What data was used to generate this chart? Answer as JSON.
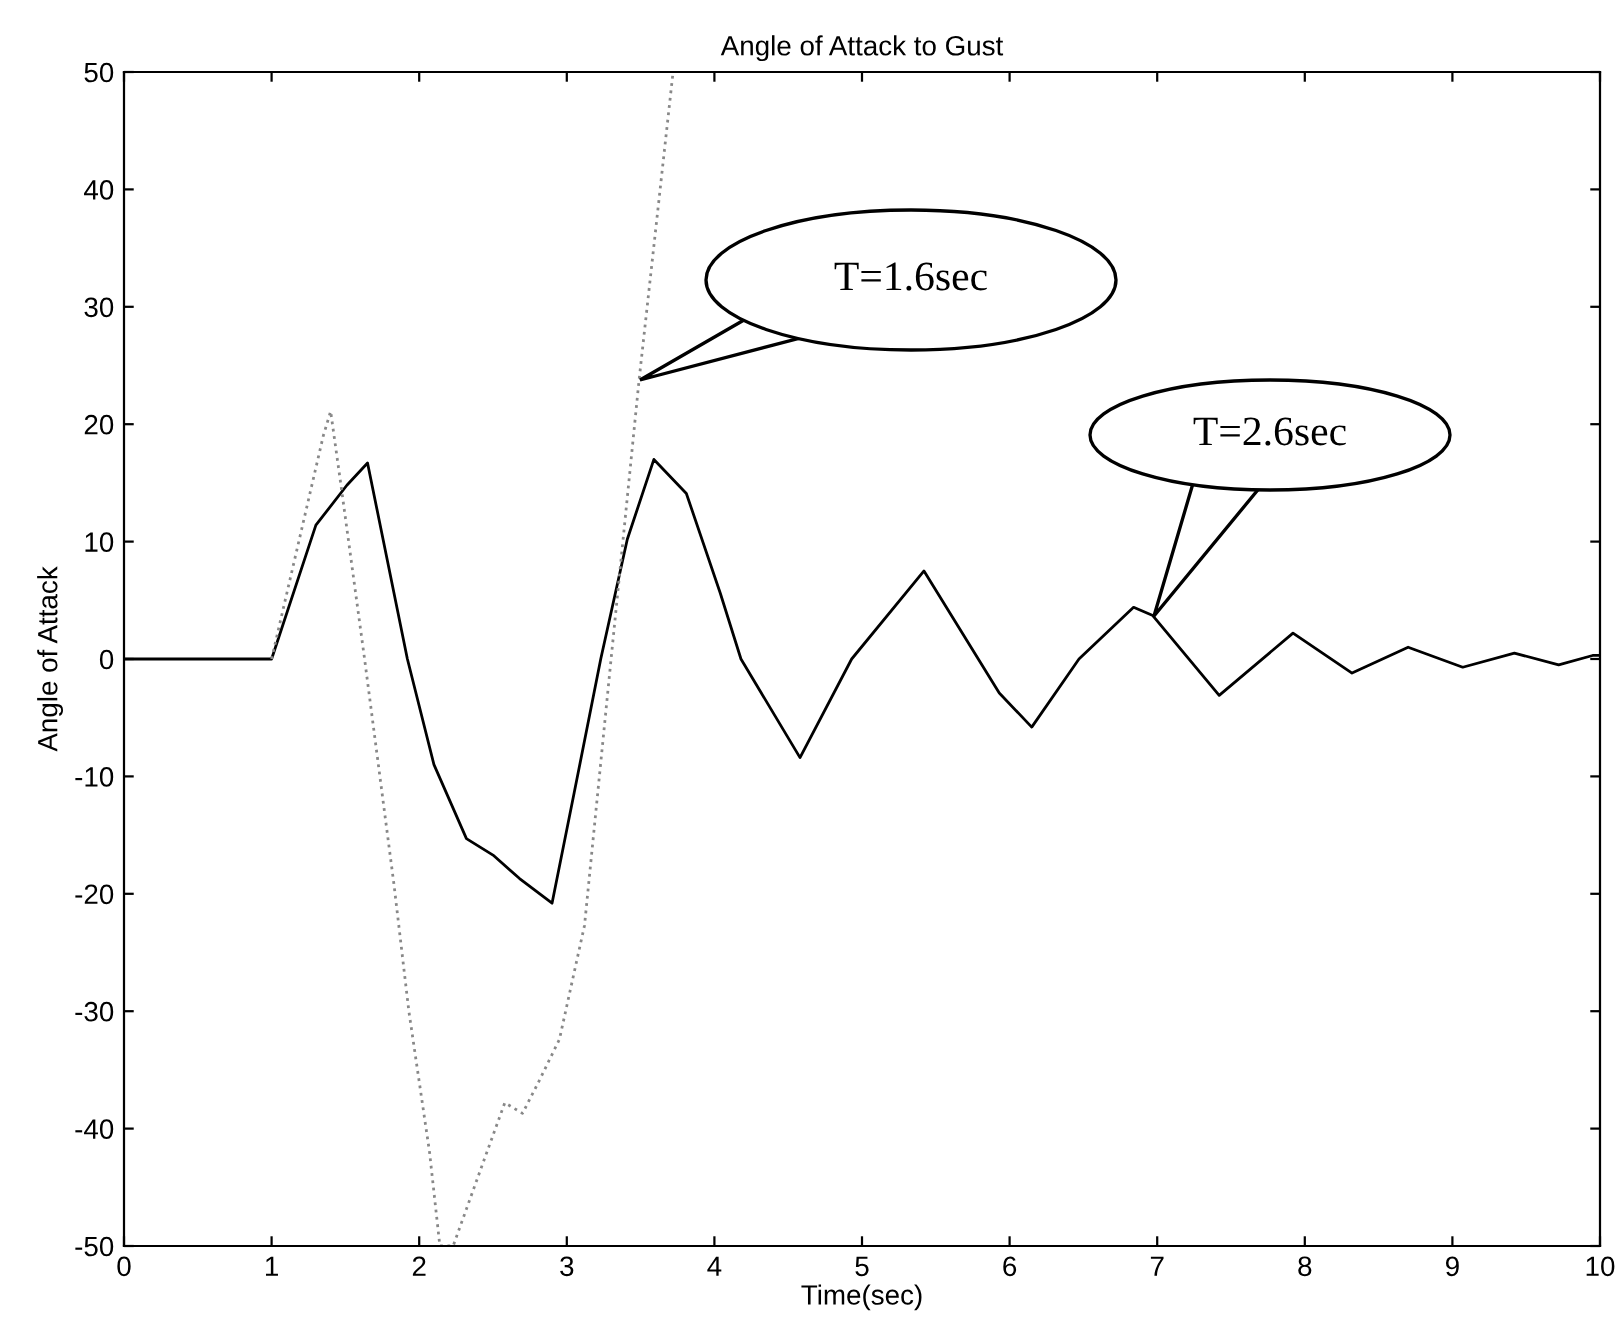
{
  "chart_data": {
    "type": "line",
    "title": "Angle of Attack to Gust",
    "xlabel": "Time(sec)",
    "ylabel": "Angle of Attack",
    "xlim": [
      0,
      10
    ],
    "ylim": [
      -50,
      50
    ],
    "xticks": [
      0,
      1,
      2,
      3,
      4,
      5,
      6,
      7,
      8,
      9,
      10
    ],
    "yticks": [
      -50,
      -40,
      -30,
      -20,
      -10,
      0,
      10,
      20,
      30,
      40,
      50
    ],
    "grid": false,
    "series": [
      {
        "color": "#000000",
        "line_style": "solid",
        "x": [
          0,
          1.0,
          1.3,
          1.51,
          1.65,
          1.92,
          2.1,
          2.32,
          2.5,
          2.68,
          2.9,
          3.05,
          3.23,
          3.41,
          3.59,
          3.81,
          4.04,
          4.18,
          4.58,
          4.93,
          5.42,
          5.93,
          6.15,
          6.47,
          6.84,
          6.97,
          7.42,
          7.92,
          8.32,
          8.7,
          9.07,
          9.42,
          9.72,
          9.95,
          10
        ],
        "values": [
          0,
          0,
          11.4,
          14.8,
          16.7,
          0,
          -9,
          -15.3,
          -16.7,
          -18.7,
          -20.8,
          -11.4,
          0,
          10.2,
          17,
          14.1,
          5.6,
          0,
          -8.4,
          0,
          7.5,
          -2.9,
          -5.8,
          0,
          4.4,
          3.7,
          -3.1,
          2.2,
          -1.2,
          1.0,
          -0.7,
          0.5,
          -0.5,
          0.3,
          0.3
        ]
      },
      {
        "color": "#888888",
        "line_style": "dotted",
        "x": [
          1.0,
          1.35,
          1.4,
          1.47,
          1.63,
          1.83,
          1.93,
          2.07,
          2.14,
          2.23,
          2.43,
          2.58,
          2.7,
          2.81,
          2.95,
          3.12,
          3.3,
          3.49,
          3.72
        ],
        "values": [
          0,
          19,
          21.1,
          14.8,
          0,
          -19.3,
          -30,
          -42,
          -50,
          -50,
          -43,
          -37.8,
          -38.7,
          -36,
          -32.4,
          -22.7,
          0,
          23.8,
          50
        ]
      }
    ],
    "annotations": [
      "T=1.6sec",
      "T=2.6sec"
    ]
  }
}
